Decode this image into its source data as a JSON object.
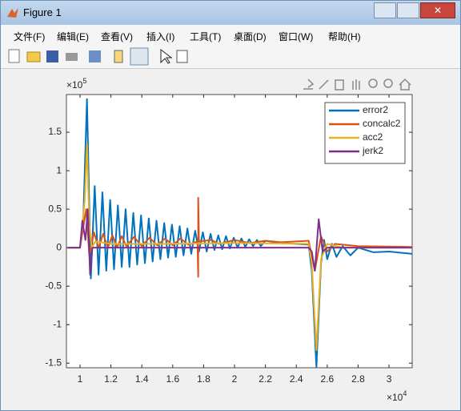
{
  "window": {
    "title": "Figure 1",
    "menu": [
      "文件(F)",
      "编辑(E)",
      "查看(V)",
      "插入(I)",
      "工具(T)",
      "桌面(D)",
      "窗口(W)",
      "帮助(H)"
    ]
  },
  "chart_data": {
    "type": "line",
    "y_multiplier": {
      "base": "×10",
      "exp": "5"
    },
    "x_multiplier": {
      "base": "×10",
      "exp": "4"
    },
    "xlim": [
      0.912,
      3.15
    ],
    "xticks": [
      1,
      1.2,
      1.4,
      1.6,
      1.8,
      2,
      2.2,
      2.4,
      2.6,
      2.8,
      3
    ],
    "ylim": [
      -1.56,
      1.99
    ],
    "yticks": [
      -1.5,
      -1,
      -0.5,
      0,
      0.5,
      1,
      1.5
    ],
    "legend": "upper right",
    "series": [
      {
        "name": "error2",
        "color": "#0072BD",
        "x": [
          0.92,
          1.0,
          1.02,
          1.045,
          1.07,
          1.095,
          1.12,
          1.145,
          1.17,
          1.195,
          1.22,
          1.245,
          1.27,
          1.295,
          1.32,
          1.345,
          1.37,
          1.395,
          1.42,
          1.445,
          1.47,
          1.495,
          1.52,
          1.545,
          1.57,
          1.595,
          1.62,
          1.645,
          1.67,
          1.695,
          1.72,
          1.745,
          1.77,
          1.795,
          1.82,
          1.845,
          1.87,
          1.895,
          1.92,
          1.945,
          1.97,
          1.995,
          2.02,
          2.045,
          2.07,
          2.095,
          2.12,
          2.145,
          2.17,
          2.2,
          2.3,
          2.4,
          2.48,
          2.5,
          2.53,
          2.56,
          2.58,
          2.6,
          2.63,
          2.66,
          2.7,
          2.75,
          2.8,
          2.9,
          3.0,
          3.15
        ],
        "values": [
          0,
          0,
          0.3,
          1.93,
          -0.4,
          0.8,
          -0.35,
          0.72,
          -0.3,
          0.62,
          -0.28,
          0.55,
          -0.25,
          0.5,
          -0.25,
          0.45,
          -0.22,
          0.42,
          -0.2,
          0.38,
          -0.18,
          0.35,
          -0.15,
          0.32,
          -0.13,
          0.3,
          -0.12,
          0.28,
          -0.1,
          0.25,
          -0.08,
          0.22,
          -0.05,
          0.2,
          -0.05,
          0.18,
          -0.03,
          0.16,
          -0.02,
          0.15,
          -0.01,
          0.13,
          0,
          0.12,
          0.01,
          0.11,
          0.02,
          0.1,
          0.02,
          0.09,
          0.06,
          0.05,
          0.04,
          -0.3,
          -1.55,
          -0.2,
          0.1,
          -0.15,
          0.05,
          -0.12,
          0.02,
          -0.1,
          0,
          -0.06,
          -0.05,
          -0.08
        ]
      },
      {
        "name": "concalc2",
        "color": "#D95319",
        "x": [
          0.92,
          1.0,
          1.04,
          1.06,
          1.09,
          1.12,
          1.15,
          1.18,
          1.21,
          1.24,
          1.27,
          1.3,
          1.35,
          1.4,
          1.45,
          1.5,
          1.55,
          1.6,
          1.65,
          1.7,
          1.76,
          1.765,
          1.765,
          1.77,
          1.85,
          1.9,
          2.0,
          2.1,
          2.2,
          2.3,
          2.48,
          2.52,
          2.56,
          2.6,
          2.65,
          2.8,
          3.15
        ],
        "values": [
          0,
          0,
          0.5,
          -0.1,
          0.2,
          0,
          0.18,
          0,
          0.16,
          0,
          0.15,
          0.02,
          0.14,
          0.02,
          0.13,
          0.03,
          0.12,
          0.03,
          0.12,
          0.04,
          0.08,
          -0.38,
          0.65,
          0.08,
          0.1,
          0.05,
          0.1,
          0.06,
          0.09,
          0.07,
          0.09,
          -0.3,
          0.15,
          -0.05,
          0.05,
          0.02,
          0.01
        ]
      },
      {
        "name": "acc2",
        "color": "#EDB120",
        "x": [
          0.92,
          1.0,
          1.03,
          1.045,
          1.06,
          1.075,
          1.1,
          1.2,
          1.5,
          2.0,
          2.48,
          2.5,
          2.53,
          2.56,
          2.6,
          2.7,
          3.15
        ],
        "values": [
          0,
          0,
          0.6,
          1.35,
          0.3,
          0,
          0.08,
          0.05,
          0.05,
          0.06,
          0.05,
          -0.2,
          -1.33,
          -0.15,
          0.05,
          0,
          0
        ]
      },
      {
        "name": "jerk2",
        "color": "#7E2F8E",
        "x": [
          0.92,
          1.0,
          1.015,
          1.035,
          1.05,
          1.065,
          1.08,
          2.48,
          2.5,
          2.52,
          2.545,
          2.57,
          2.6,
          3.15
        ],
        "values": [
          0,
          0,
          0.35,
          0.1,
          0.5,
          -0.35,
          0,
          0,
          -0.05,
          -0.3,
          0.37,
          -0.05,
          0,
          0
        ]
      }
    ]
  }
}
